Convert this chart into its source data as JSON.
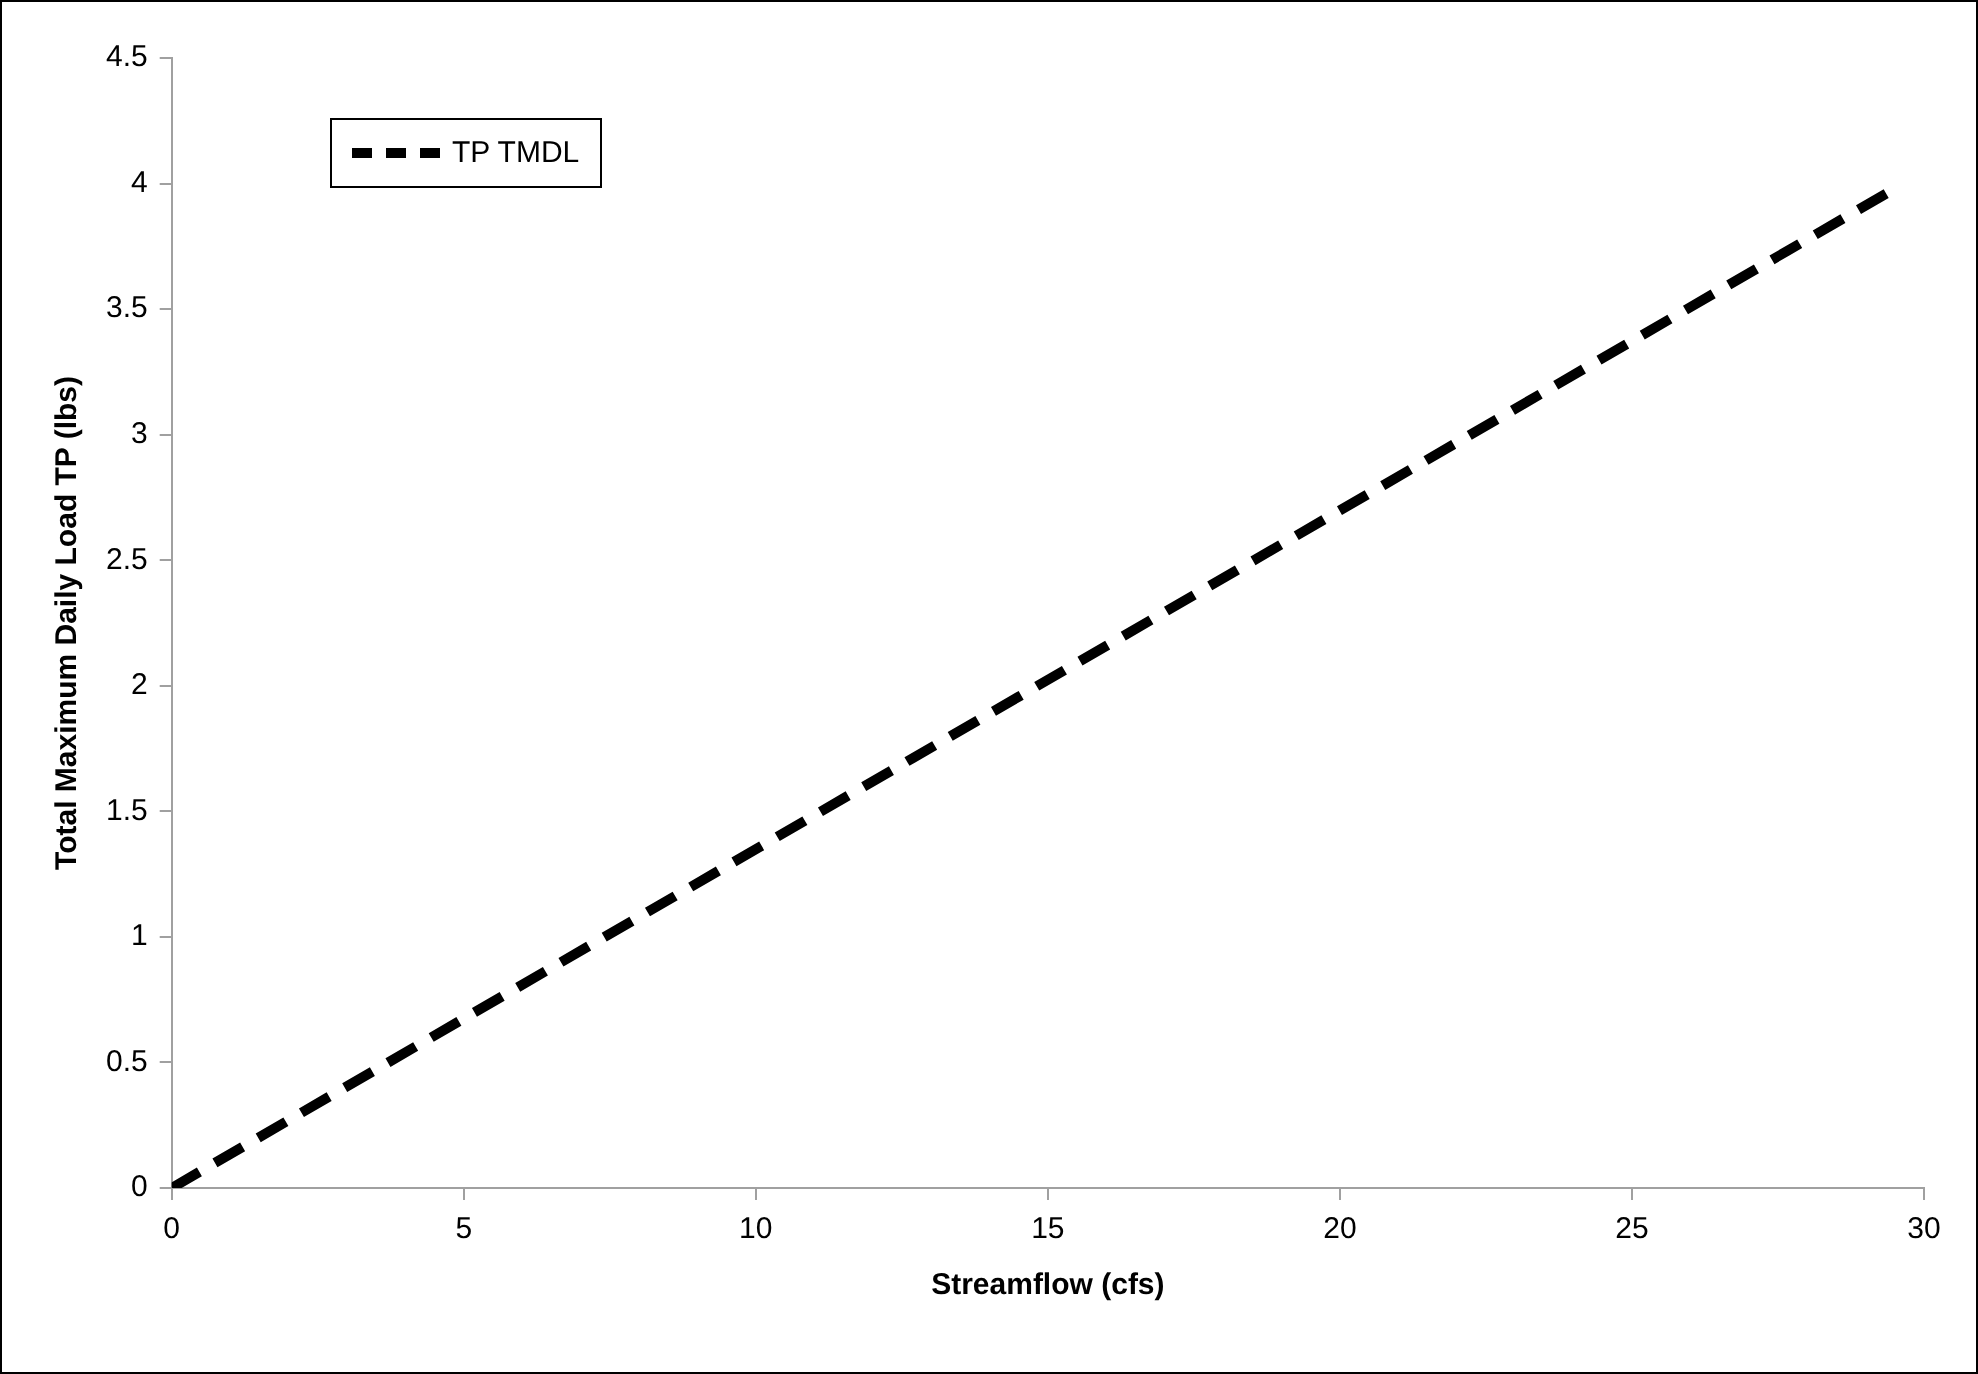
{
  "chart_data": {
    "type": "line",
    "xlabel": "Streamflow (cfs)",
    "ylabel": "Total Maximum Daily Load TP (lbs)",
    "x": [
      0,
      29.5
    ],
    "series": [
      {
        "name": "TP TMDL",
        "color": "#000000",
        "values": [
          0,
          3.98
        ]
      }
    ],
    "xlim": [
      0,
      30
    ],
    "xticks": [
      0,
      5,
      10,
      15,
      20,
      25,
      30
    ],
    "ylim": [
      0,
      4.5
    ],
    "yticks": [
      0,
      0.5,
      1,
      1.5,
      2,
      2.5,
      3,
      3.5,
      4,
      4.5
    ],
    "grid": false,
    "legend": "top left",
    "marker": "none",
    "line_style": "dashed"
  }
}
